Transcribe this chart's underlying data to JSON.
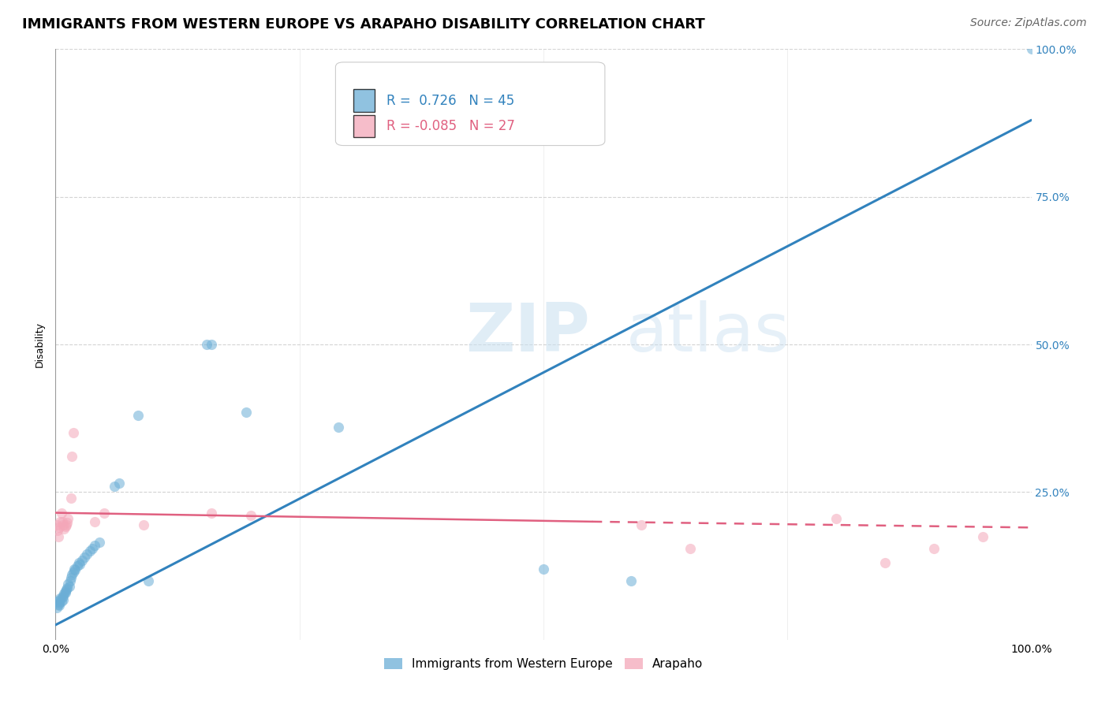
{
  "title": "IMMIGRANTS FROM WESTERN EUROPE VS ARAPAHO DISABILITY CORRELATION CHART",
  "source": "Source: ZipAtlas.com",
  "ylabel": "Disability",
  "watermark": "ZIPatlas",
  "legend_entries": [
    {
      "label": "Immigrants from Western Europe",
      "R": 0.726,
      "N": 45,
      "color": "#6baed6"
    },
    {
      "label": "Arapaho",
      "R": -0.085,
      "N": 27,
      "color": "#f4a7b9"
    }
  ],
  "blue_scatter": [
    [
      0.001,
      0.055
    ],
    [
      0.002,
      0.065
    ],
    [
      0.003,
      0.06
    ],
    [
      0.004,
      0.058
    ],
    [
      0.004,
      0.062
    ],
    [
      0.005,
      0.07
    ],
    [
      0.005,
      0.068
    ],
    [
      0.006,
      0.065
    ],
    [
      0.007,
      0.072
    ],
    [
      0.008,
      0.068
    ],
    [
      0.008,
      0.075
    ],
    [
      0.009,
      0.078
    ],
    [
      0.01,
      0.08
    ],
    [
      0.01,
      0.082
    ],
    [
      0.011,
      0.085
    ],
    [
      0.012,
      0.088
    ],
    [
      0.013,
      0.095
    ],
    [
      0.014,
      0.09
    ],
    [
      0.015,
      0.1
    ],
    [
      0.016,
      0.105
    ],
    [
      0.017,
      0.11
    ],
    [
      0.018,
      0.115
    ],
    [
      0.019,
      0.12
    ],
    [
      0.02,
      0.118
    ],
    [
      0.022,
      0.125
    ],
    [
      0.024,
      0.13
    ],
    [
      0.025,
      0.128
    ],
    [
      0.027,
      0.135
    ],
    [
      0.03,
      0.14
    ],
    [
      0.032,
      0.145
    ],
    [
      0.035,
      0.15
    ],
    [
      0.038,
      0.155
    ],
    [
      0.04,
      0.16
    ],
    [
      0.045,
      0.165
    ],
    [
      0.06,
      0.26
    ],
    [
      0.065,
      0.265
    ],
    [
      0.085,
      0.38
    ],
    [
      0.095,
      0.1
    ],
    [
      0.155,
      0.5
    ],
    [
      0.16,
      0.5
    ],
    [
      0.195,
      0.385
    ],
    [
      0.29,
      0.36
    ],
    [
      0.5,
      0.12
    ],
    [
      0.59,
      0.1
    ],
    [
      1.0,
      1.0
    ]
  ],
  "pink_scatter": [
    [
      0.001,
      0.195
    ],
    [
      0.002,
      0.185
    ],
    [
      0.003,
      0.175
    ],
    [
      0.004,
      0.19
    ],
    [
      0.005,
      0.2
    ],
    [
      0.006,
      0.215
    ],
    [
      0.007,
      0.2
    ],
    [
      0.008,
      0.195
    ],
    [
      0.009,
      0.188
    ],
    [
      0.01,
      0.192
    ],
    [
      0.011,
      0.195
    ],
    [
      0.012,
      0.198
    ],
    [
      0.013,
      0.205
    ],
    [
      0.016,
      0.24
    ],
    [
      0.017,
      0.31
    ],
    [
      0.018,
      0.35
    ],
    [
      0.04,
      0.2
    ],
    [
      0.05,
      0.215
    ],
    [
      0.09,
      0.195
    ],
    [
      0.16,
      0.215
    ],
    [
      0.2,
      0.21
    ],
    [
      0.6,
      0.195
    ],
    [
      0.65,
      0.155
    ],
    [
      0.8,
      0.205
    ],
    [
      0.85,
      0.13
    ],
    [
      0.9,
      0.155
    ],
    [
      0.95,
      0.175
    ]
  ],
  "blue_line": [
    [
      0.0,
      0.025
    ],
    [
      1.0,
      0.88
    ]
  ],
  "pink_line_solid": [
    [
      0.0,
      0.215
    ],
    [
      0.55,
      0.2
    ]
  ],
  "pink_line_dashed": [
    [
      0.55,
      0.2
    ],
    [
      1.0,
      0.19
    ]
  ],
  "xlim": [
    0.0,
    1.0
  ],
  "ylim": [
    0.0,
    1.0
  ],
  "yticks": [
    0.0,
    0.25,
    0.5,
    0.75,
    1.0
  ],
  "ytick_labels_right": [
    "",
    "25.0%",
    "50.0%",
    "75.0%",
    "100.0%"
  ],
  "xtick_positions": [
    0.0,
    0.25,
    0.5,
    0.75,
    1.0
  ],
  "xtick_labels": [
    "0.0%",
    "",
    "",
    "",
    "100.0%"
  ],
  "grid_color": "#c8c8c8",
  "background_color": "#ffffff",
  "scatter_alpha": 0.55,
  "scatter_size": 90,
  "blue_color": "#6baed6",
  "pink_color": "#f4a7b9",
  "blue_line_color": "#3182bd",
  "pink_line_solid_color": "#e06080",
  "pink_line_dashed_color": "#e06080",
  "title_fontsize": 13,
  "axis_label_fontsize": 9,
  "tick_fontsize": 10,
  "source_fontsize": 10
}
